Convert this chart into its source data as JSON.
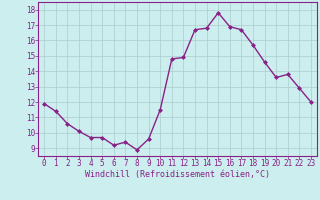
{
  "x": [
    0,
    1,
    2,
    3,
    4,
    5,
    6,
    7,
    8,
    9,
    10,
    11,
    12,
    13,
    14,
    15,
    16,
    17,
    18,
    19,
    20,
    21,
    22,
    23
  ],
  "y": [
    11.9,
    11.4,
    10.6,
    10.1,
    9.7,
    9.7,
    9.2,
    9.4,
    8.9,
    9.6,
    11.5,
    14.8,
    14.9,
    16.7,
    16.8,
    17.8,
    16.9,
    16.7,
    15.7,
    14.6,
    13.6,
    13.8,
    12.9,
    12.0
  ],
  "line_color": "#882288",
  "marker": "D",
  "marker_size": 2.0,
  "bg_color": "#cceeee",
  "grid_color": "#aacccc",
  "xlabel": "Windchill (Refroidissement éolien,°C)",
  "xlim": [
    -0.5,
    23.5
  ],
  "ylim": [
    8.5,
    18.5
  ],
  "yticks": [
    9,
    10,
    11,
    12,
    13,
    14,
    15,
    16,
    17,
    18
  ],
  "xticks": [
    0,
    1,
    2,
    3,
    4,
    5,
    6,
    7,
    8,
    9,
    10,
    11,
    12,
    13,
    14,
    15,
    16,
    17,
    18,
    19,
    20,
    21,
    22,
    23
  ],
  "tick_color": "#882288",
  "xlabel_color": "#882288",
  "spine_color": "#882288",
  "line_width": 1.0,
  "tick_fontsize": 5.5,
  "xlabel_fontsize": 6.0
}
